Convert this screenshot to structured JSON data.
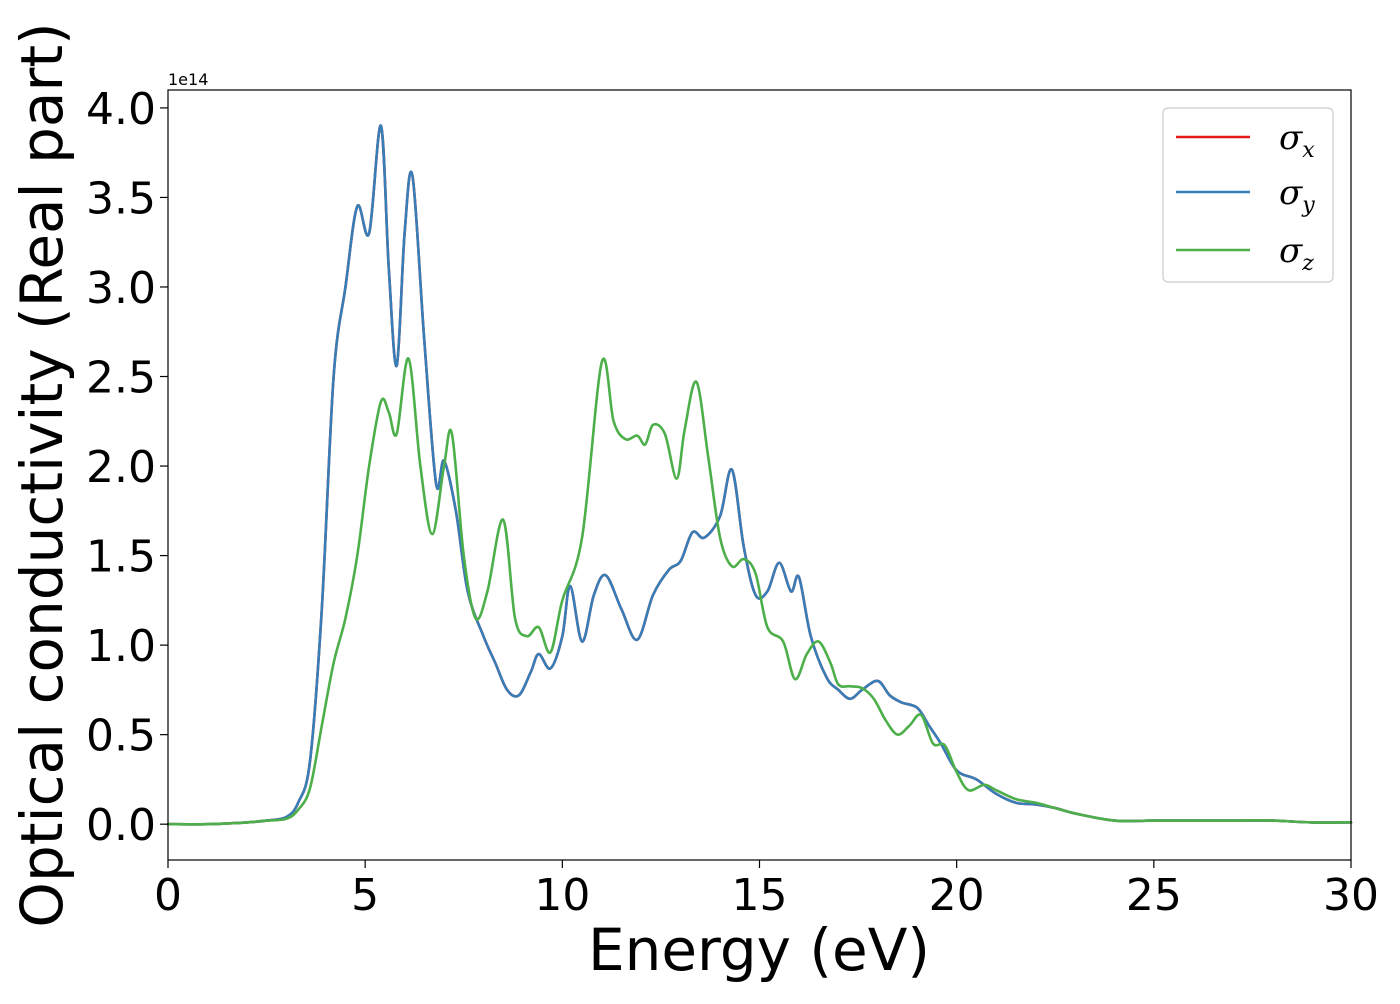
{
  "chart_data": {
    "type": "line",
    "xlabel": "Energy (eV)",
    "ylabel": "Optical conductivity (Real part)",
    "y_offset_text": "1e14",
    "y_scale_factor": 100000000000000.0,
    "xlim": [
      0,
      30
    ],
    "ylim": [
      -0.2,
      4.1
    ],
    "x_ticks": [
      0,
      5,
      10,
      15,
      20,
      25,
      30
    ],
    "x_tick_labels": [
      "0",
      "5",
      "10",
      "15",
      "20",
      "25",
      "30"
    ],
    "y_ticks": [
      0.0,
      0.5,
      1.0,
      1.5,
      2.0,
      2.5,
      3.0,
      3.5,
      4.0
    ],
    "y_tick_labels": [
      "0.0",
      "0.5",
      "1.0",
      "1.5",
      "2.0",
      "2.5",
      "3.0",
      "3.5",
      "4.0"
    ],
    "grid": false,
    "legend_position": "top-right",
    "series": [
      {
        "name": "σx",
        "legend_symbol": "σ",
        "legend_subscript": "x",
        "color": "#e41a1c",
        "x": [
          0,
          1,
          2,
          2.5,
          3,
          3.3,
          3.6,
          3.9,
          4.2,
          4.5,
          4.8,
          5.1,
          5.4,
          5.6,
          5.8,
          6.0,
          6.2,
          6.5,
          6.8,
          7.0,
          7.3,
          7.6,
          8.0,
          8.3,
          8.6,
          8.9,
          9.2,
          9.4,
          9.7,
          10.0,
          10.2,
          10.5,
          10.8,
          11.1,
          11.5,
          11.9,
          12.3,
          12.7,
          13.0,
          13.3,
          13.6,
          14.0,
          14.3,
          14.6,
          14.9,
          15.2,
          15.5,
          15.8,
          16.0,
          16.3,
          16.7,
          17.0,
          17.3,
          17.6,
          18.0,
          18.3,
          18.6,
          19.0,
          19.3,
          19.6,
          20.0,
          20.5,
          21.0,
          21.5,
          22.0,
          22.5,
          23.0,
          24.0,
          25.0,
          26.0,
          27.0,
          28.0,
          29.0,
          30.0
        ],
        "values": [
          0.0,
          0.0,
          0.01,
          0.02,
          0.04,
          0.12,
          0.35,
          1.2,
          2.5,
          3.0,
          3.45,
          3.3,
          3.9,
          3.1,
          2.56,
          3.3,
          3.62,
          2.7,
          1.9,
          2.03,
          1.75,
          1.3,
          1.05,
          0.9,
          0.75,
          0.72,
          0.85,
          0.95,
          0.87,
          1.05,
          1.33,
          1.02,
          1.28,
          1.39,
          1.2,
          1.03,
          1.28,
          1.42,
          1.47,
          1.63,
          1.6,
          1.72,
          1.98,
          1.55,
          1.28,
          1.3,
          1.46,
          1.3,
          1.38,
          1.05,
          0.82,
          0.75,
          0.7,
          0.75,
          0.8,
          0.72,
          0.68,
          0.65,
          0.55,
          0.45,
          0.3,
          0.25,
          0.17,
          0.12,
          0.11,
          0.09,
          0.06,
          0.02,
          0.02,
          0.02,
          0.02,
          0.02,
          0.01,
          0.01
        ]
      },
      {
        "name": "σy",
        "legend_symbol": "σ",
        "legend_subscript": "y",
        "color": "#377eb8",
        "x": [
          0,
          1,
          2,
          2.5,
          3,
          3.3,
          3.6,
          3.9,
          4.2,
          4.5,
          4.8,
          5.1,
          5.4,
          5.6,
          5.8,
          6.0,
          6.2,
          6.5,
          6.8,
          7.0,
          7.3,
          7.6,
          8.0,
          8.3,
          8.6,
          8.9,
          9.2,
          9.4,
          9.7,
          10.0,
          10.2,
          10.5,
          10.8,
          11.1,
          11.5,
          11.9,
          12.3,
          12.7,
          13.0,
          13.3,
          13.6,
          14.0,
          14.3,
          14.6,
          14.9,
          15.2,
          15.5,
          15.8,
          16.0,
          16.3,
          16.7,
          17.0,
          17.3,
          17.6,
          18.0,
          18.3,
          18.6,
          19.0,
          19.3,
          19.6,
          20.0,
          20.5,
          21.0,
          21.5,
          22.0,
          22.5,
          23.0,
          24.0,
          25.0,
          26.0,
          27.0,
          28.0,
          29.0,
          30.0
        ],
        "values": [
          0.0,
          0.0,
          0.01,
          0.02,
          0.04,
          0.12,
          0.35,
          1.2,
          2.5,
          3.0,
          3.45,
          3.3,
          3.9,
          3.1,
          2.56,
          3.3,
          3.62,
          2.7,
          1.9,
          2.03,
          1.75,
          1.3,
          1.05,
          0.9,
          0.75,
          0.72,
          0.85,
          0.95,
          0.87,
          1.05,
          1.33,
          1.02,
          1.28,
          1.39,
          1.2,
          1.03,
          1.28,
          1.42,
          1.47,
          1.63,
          1.6,
          1.72,
          1.98,
          1.55,
          1.28,
          1.3,
          1.46,
          1.3,
          1.38,
          1.05,
          0.82,
          0.75,
          0.7,
          0.75,
          0.8,
          0.72,
          0.68,
          0.65,
          0.55,
          0.45,
          0.3,
          0.25,
          0.17,
          0.12,
          0.11,
          0.09,
          0.06,
          0.02,
          0.02,
          0.02,
          0.02,
          0.02,
          0.01,
          0.01
        ]
      },
      {
        "name": "σz",
        "legend_symbol": "σ",
        "legend_subscript": "z",
        "color": "#4daf4a",
        "x": [
          0,
          1,
          2,
          2.5,
          3,
          3.3,
          3.6,
          3.9,
          4.2,
          4.5,
          4.8,
          5.1,
          5.4,
          5.6,
          5.8,
          6.1,
          6.4,
          6.7,
          7.0,
          7.2,
          7.5,
          7.8,
          8.1,
          8.5,
          8.8,
          9.1,
          9.4,
          9.7,
          10.0,
          10.5,
          11.0,
          11.3,
          11.6,
          11.9,
          12.1,
          12.3,
          12.6,
          12.9,
          13.1,
          13.4,
          13.7,
          14.0,
          14.3,
          14.6,
          14.9,
          15.2,
          15.6,
          15.9,
          16.2,
          16.5,
          16.8,
          17.0,
          17.3,
          17.6,
          17.9,
          18.2,
          18.5,
          18.8,
          19.1,
          19.4,
          19.7,
          20.0,
          20.3,
          20.7,
          21.0,
          21.5,
          22.0,
          22.5,
          23.0,
          24.0,
          25.0,
          26.0,
          27.0,
          28.0,
          29.0,
          30.0
        ],
        "values": [
          0.0,
          0.0,
          0.01,
          0.02,
          0.03,
          0.08,
          0.2,
          0.55,
          0.9,
          1.15,
          1.5,
          2.0,
          2.36,
          2.3,
          2.18,
          2.6,
          2.0,
          1.62,
          2.0,
          2.18,
          1.5,
          1.15,
          1.3,
          1.7,
          1.15,
          1.05,
          1.1,
          0.96,
          1.25,
          1.6,
          2.58,
          2.25,
          2.15,
          2.17,
          2.12,
          2.23,
          2.18,
          1.93,
          2.2,
          2.47,
          2.05,
          1.6,
          1.44,
          1.48,
          1.4,
          1.1,
          1.02,
          0.81,
          0.95,
          1.02,
          0.9,
          0.78,
          0.77,
          0.76,
          0.7,
          0.58,
          0.5,
          0.55,
          0.61,
          0.45,
          0.44,
          0.29,
          0.19,
          0.22,
          0.19,
          0.14,
          0.12,
          0.09,
          0.06,
          0.02,
          0.02,
          0.02,
          0.02,
          0.02,
          0.01,
          0.01
        ]
      }
    ]
  }
}
